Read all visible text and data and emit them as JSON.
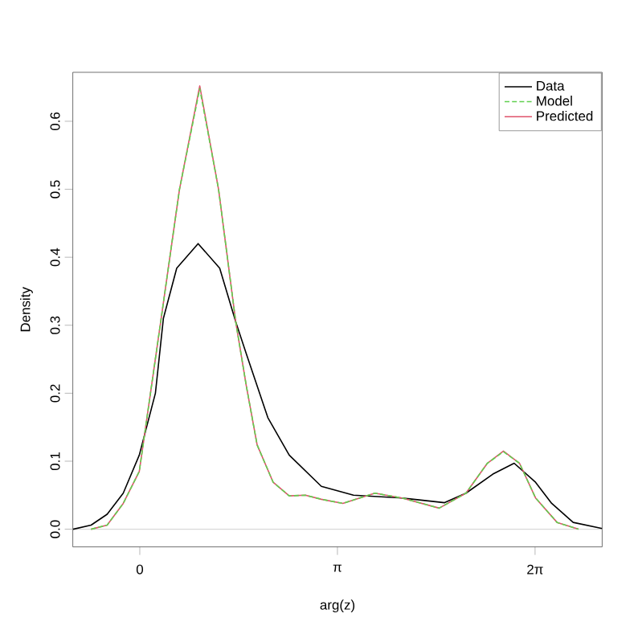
{
  "chart_data": {
    "type": "line",
    "xlabel": "arg(z)",
    "ylabel": "Density",
    "xlim": [
      -1.065,
      7.35
    ],
    "ylim": [
      -0.026,
      0.672
    ],
    "xticks": [
      {
        "value": 0,
        "label": "0"
      },
      {
        "value": 3.14159,
        "label": "π"
      },
      {
        "value": 6.28319,
        "label": "2π"
      }
    ],
    "yticks": [
      {
        "value": 0,
        "label": "0.0"
      },
      {
        "value": 0.1,
        "label": "0.1"
      },
      {
        "value": 0.2,
        "label": "0.2"
      },
      {
        "value": 0.3,
        "label": "0.3"
      },
      {
        "value": 0.4,
        "label": "0.4"
      },
      {
        "value": 0.5,
        "label": "0.5"
      },
      {
        "value": 0.6,
        "label": "0.6"
      }
    ],
    "legend": "top right",
    "grid": false,
    "marker": "none",
    "ref_lines": [
      {
        "axis": "y",
        "value": 0,
        "color": "#d9d9d9"
      }
    ],
    "series": [
      {
        "name": "Data",
        "color": "#000000",
        "line_style": "solid",
        "x": [
          -1.06,
          -0.774,
          -0.519,
          -0.263,
          -0.008,
          0.248,
          0.375,
          0.587,
          0.927,
          1.27,
          1.525,
          1.693,
          2.036,
          2.375,
          2.886,
          3.397,
          4.163,
          4.845,
          5.185,
          5.612,
          5.951,
          6.291,
          6.547,
          6.889,
          7.35
        ],
        "values": [
          0.0,
          0.006,
          0.022,
          0.053,
          0.109,
          0.2,
          0.31,
          0.384,
          0.42,
          0.384,
          0.305,
          0.258,
          0.164,
          0.109,
          0.063,
          0.05,
          0.046,
          0.039,
          0.053,
          0.081,
          0.097,
          0.069,
          0.038,
          0.01,
          0.001
        ]
      },
      {
        "name": "Model",
        "color": "#61d04f",
        "line_style": "dashed",
        "x": [
          -0.774,
          -0.519,
          -0.263,
          -0.008,
          0.332,
          0.631,
          0.953,
          1.252,
          1.525,
          1.693,
          1.865,
          2.12,
          2.375,
          2.631,
          2.886,
          3.227,
          3.738,
          4.163,
          4.759,
          5.185,
          5.525,
          5.78,
          6.036,
          6.291,
          6.633,
          6.974
        ],
        "values": [
          0.0,
          0.006,
          0.038,
          0.085,
          0.305,
          0.5,
          0.648,
          0.5,
          0.305,
          0.211,
          0.124,
          0.069,
          0.049,
          0.05,
          0.044,
          0.038,
          0.053,
          0.046,
          0.031,
          0.053,
          0.097,
          0.114,
          0.097,
          0.046,
          0.01,
          0.0
        ]
      },
      {
        "name": "Predicted",
        "color": "#df536b",
        "line_style": "solid",
        "x": [
          -0.774,
          -0.519,
          -0.263,
          -0.008,
          0.332,
          0.631,
          0.953,
          1.252,
          1.525,
          1.693,
          1.865,
          2.12,
          2.375,
          2.631,
          2.886,
          3.227,
          3.738,
          4.163,
          4.759,
          5.185,
          5.525,
          5.78,
          6.036,
          6.291,
          6.633,
          6.974
        ],
        "values": [
          0.0,
          0.006,
          0.038,
          0.085,
          0.305,
          0.5,
          0.652,
          0.5,
          0.305,
          0.211,
          0.124,
          0.069,
          0.049,
          0.05,
          0.044,
          0.038,
          0.053,
          0.046,
          0.031,
          0.053,
          0.097,
          0.115,
          0.097,
          0.046,
          0.01,
          0.0
        ]
      }
    ]
  }
}
